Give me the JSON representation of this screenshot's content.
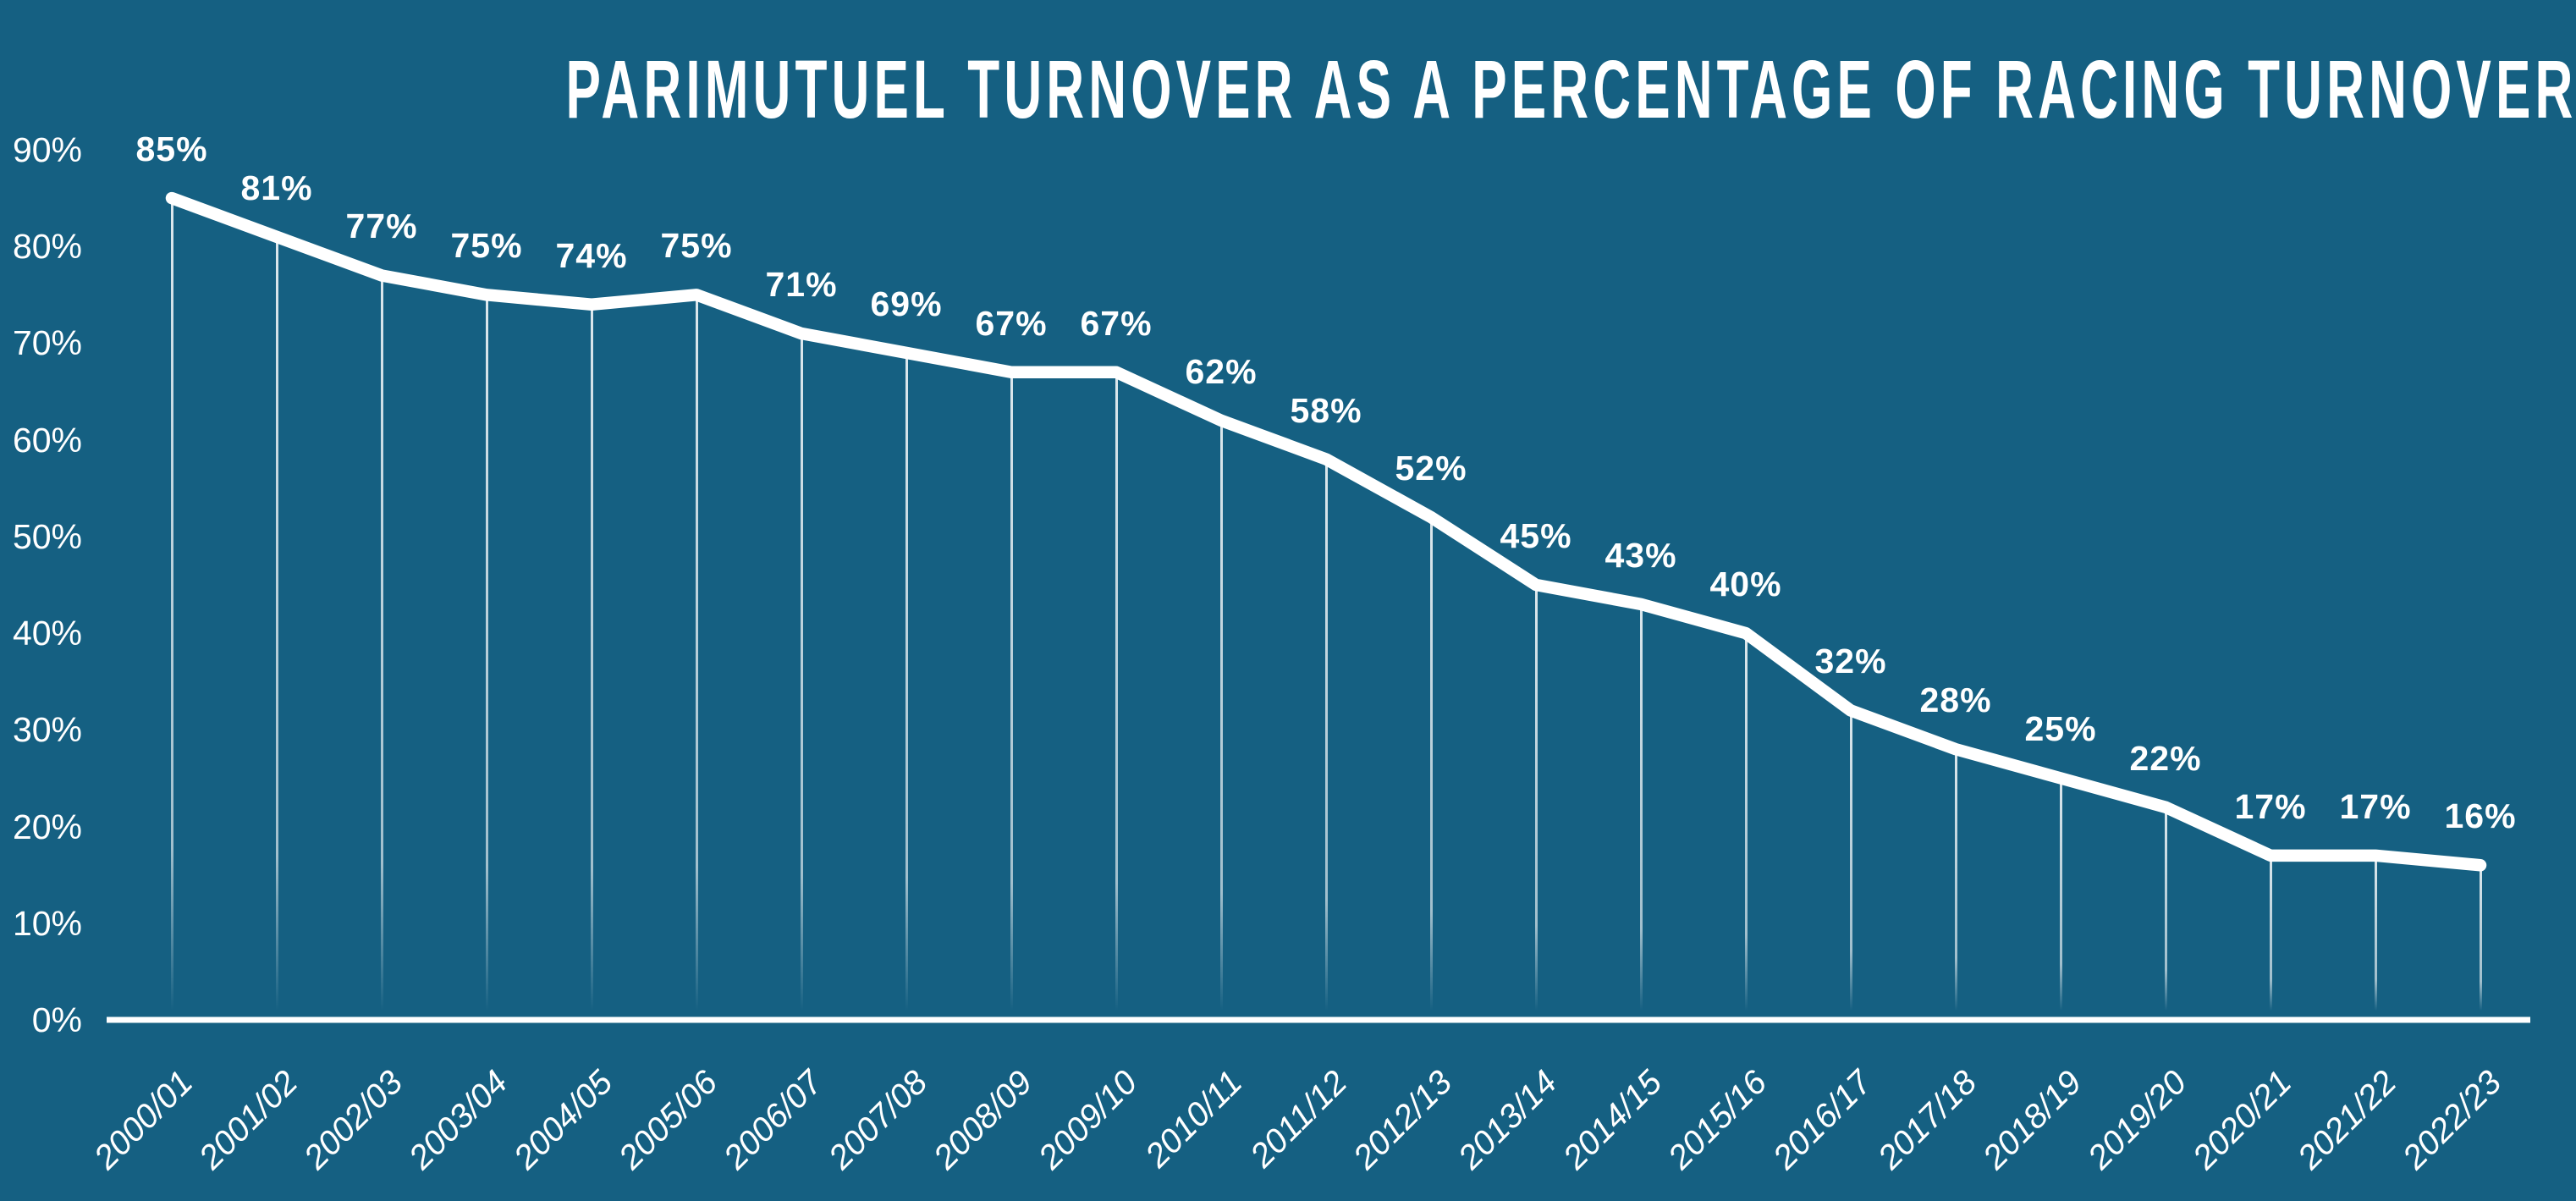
{
  "colors": {
    "background": "#156082",
    "foreground": "#ffffff",
    "line": "#ffffff",
    "dropline": "rgba(255,255,255,0.7)"
  },
  "chart_data": {
    "type": "line",
    "title": "PARIMUTUEL TURNOVER AS A PERCENTAGE OF RACING TURNOVER",
    "xlabel": "",
    "ylabel": "",
    "unit": "%",
    "categories": [
      "2000/01",
      "2001/02",
      "2002/03",
      "2003/04",
      "2004/05",
      "2005/06",
      "2006/07",
      "2007/08",
      "2008/09",
      "2009/10",
      "2010/11",
      "2011/12",
      "2012/13",
      "2013/14",
      "2014/15",
      "2015/16",
      "2016/17",
      "2017/18",
      "2018/19",
      "2019/20",
      "2020/21",
      "2021/22",
      "2022/23"
    ],
    "values": [
      85,
      81,
      77,
      75,
      74,
      75,
      71,
      69,
      67,
      67,
      62,
      58,
      52,
      45,
      43,
      40,
      32,
      28,
      25,
      22,
      17,
      17,
      16
    ],
    "data_labels": [
      "85%",
      "81%",
      "77%",
      "75%",
      "74%",
      "75%",
      "71%",
      "69%",
      "67%",
      "67%",
      "62%",
      "58%",
      "52%",
      "45%",
      "43%",
      "40%",
      "32%",
      "28%",
      "25%",
      "22%",
      "17%",
      "17%",
      "16%"
    ],
    "y_ticks": [
      "0%",
      "10%",
      "20%",
      "30%",
      "40%",
      "50%",
      "60%",
      "70%",
      "80%",
      "90%"
    ],
    "y_tick_values": [
      0,
      10,
      20,
      30,
      40,
      50,
      60,
      70,
      80,
      90
    ],
    "ylim": [
      0,
      90
    ],
    "grid": false,
    "legend": false,
    "marker": "none",
    "line_style": "thick-white-rounded",
    "x_label_rotation_deg": -45
  }
}
